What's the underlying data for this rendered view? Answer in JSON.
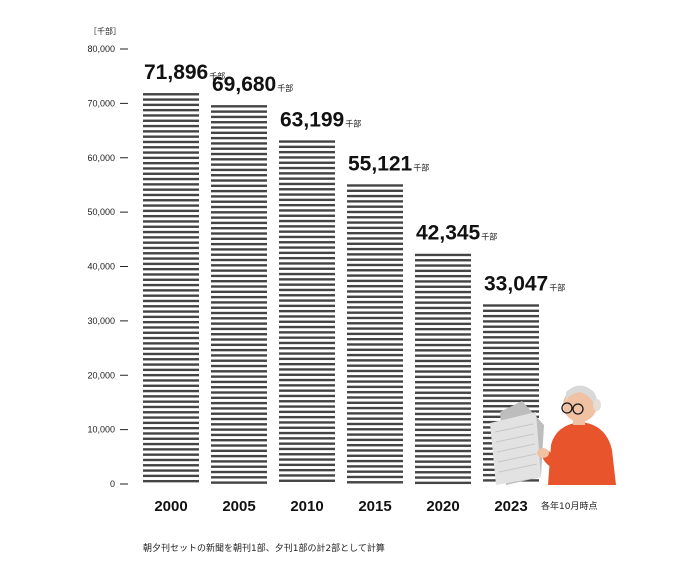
{
  "chart_data": {
    "type": "bar",
    "unit_label": "［千部］",
    "categories": [
      "2000",
      "2005",
      "2010",
      "2015",
      "2020",
      "2023"
    ],
    "values": [
      71896,
      69680,
      63199,
      55121,
      42345,
      33047
    ],
    "value_labels": [
      "71,896",
      "69,680",
      "63,199",
      "55,121",
      "42,345",
      "33,047"
    ],
    "value_suffix": "千部",
    "ylim": [
      0,
      80000
    ],
    "yticks": [
      0,
      10000,
      20000,
      30000,
      40000,
      50000,
      60000,
      70000,
      80000
    ],
    "ytick_labels": [
      "0",
      "10,000",
      "20,000",
      "30,000",
      "40,000",
      "50,000",
      "60,000",
      "70,000",
      "80,000"
    ],
    "last_category_note": "各年10月時点",
    "footnote": "朝夕刊セットの新聞を朝刊1部、夕刊1部の計2部として計算",
    "bar_style": "horizontal-stripes",
    "bar_color": "#444444",
    "grid": false
  },
  "illustration": {
    "icon": "elderly-man-reading-newspaper-icon",
    "shirt_color": "#e8552d"
  }
}
